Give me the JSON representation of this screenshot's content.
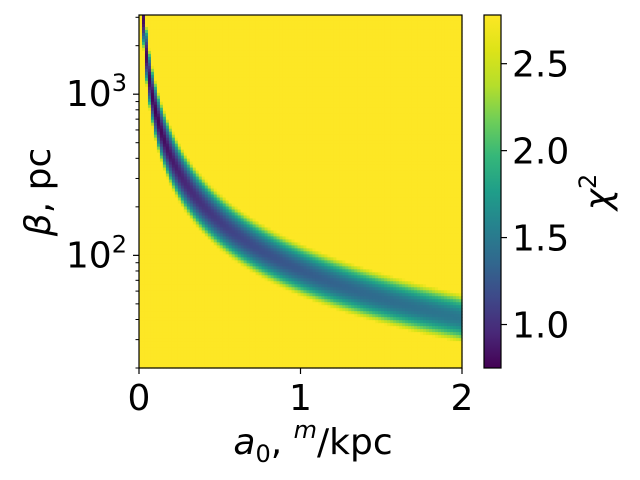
{
  "chart_data": {
    "type": "heatmap",
    "xlabel": {
      "base": "a",
      "sub": "0",
      "mid": ", ",
      "sup": "m",
      "tail": "/kpc"
    },
    "ylabel": {
      "greek": "β",
      "tail": ", pc"
    },
    "colorbar_label": {
      "base": "χ",
      "sup": "2"
    },
    "x_ticks": [
      "0",
      "1",
      "2"
    ],
    "x_tick_values": [
      0,
      1,
      2
    ],
    "y_ticks": [
      {
        "base": "10",
        "exp": "3",
        "value": 1000
      },
      {
        "base": "10",
        "exp": "2",
        "value": 100
      }
    ],
    "xlim": [
      0,
      2
    ],
    "ylim": [
      20,
      3100
    ],
    "yscale": "log",
    "colorbar_ticks": [
      "1.0",
      "1.5",
      "2.0",
      "2.5"
    ],
    "colorbar_tick_values": [
      1.0,
      1.5,
      2.0,
      2.5
    ],
    "colorbar_range": [
      0.75,
      2.78
    ],
    "colormap": "viridis",
    "valley": {
      "description_free": true,
      "ridge_product_a0_times_beta": 80,
      "min_value": 0.75,
      "saturation_value": 2.78
    }
  }
}
